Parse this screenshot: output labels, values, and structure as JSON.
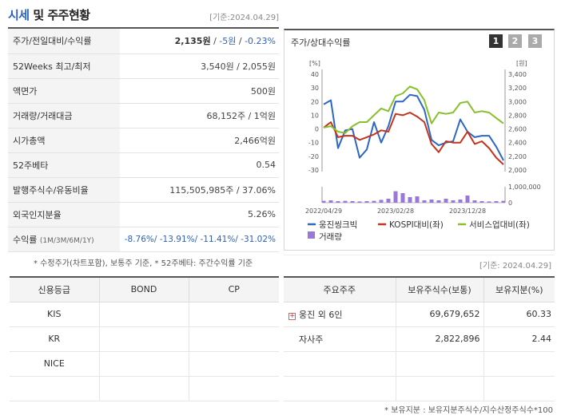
{
  "header": {
    "title_a": "시세",
    "title_b": " 및 주주현황",
    "date": "[기준:2024.04.29]"
  },
  "stock_rows": [
    {
      "label": "주가/전일대비/수익률",
      "v1": "2,135원",
      "sep1": " / ",
      "v2": "-5원",
      "sep2": " / ",
      "v3": "-0.23%"
    },
    {
      "label": "52Weeks 최고/최저",
      "value": "3,540원 / 2,055원"
    },
    {
      "label": "액면가",
      "value": "500원"
    },
    {
      "label": "거래량/거래대금",
      "value": "68,152주 / 1억원"
    },
    {
      "label": "시가총액",
      "value": "2,466억원"
    },
    {
      "label": "52주베타",
      "value": "0.54"
    },
    {
      "label": "발행주식수/유동비율",
      "value": "115,505,985주 / 37.06%"
    },
    {
      "label": "외국인지분율",
      "value": "5.26%"
    },
    {
      "label": "수익률",
      "label_sub": "(1M/3M/6M/1Y)",
      "value": "-8.76%/ -13.91%/ -11.41%/ -31.02%"
    }
  ],
  "note1": "* 수정주가(차트포함), 보통주 기준, * 52주베타: 주간수익률 기준",
  "chart_panel": {
    "title": "주가/상대수익률",
    "pages": [
      "1",
      "2",
      "3"
    ],
    "date": "[기준: 2024.04.29]"
  },
  "chart_data": {
    "type": "line",
    "left_unit": "[%]",
    "right_unit": "[원]",
    "left_ticks": [
      "40",
      "30",
      "20",
      "10",
      "0",
      "-10",
      "-20",
      "-30"
    ],
    "left_ylim": [
      -30,
      40
    ],
    "right_ticks": [
      "3,400",
      "3,200",
      "3,000",
      "2,800",
      "2,600",
      "2,400",
      "2,200",
      "2,000"
    ],
    "right_ylim": [
      2000,
      3400
    ],
    "vol_tick_top": "1,000,000",
    "vol_tick_bottom": "0",
    "x_labels": [
      "2022/04/29",
      "2023/02/28",
      "2023/12/28"
    ],
    "x_label_pos": [
      0,
      10,
      20
    ],
    "x_count": 26,
    "series": [
      {
        "name": "웅진씽크빅",
        "color": "#2e66c4",
        "values": [
          18,
          21,
          -14,
          -1,
          0,
          -21,
          -15,
          5,
          -10,
          2,
          20,
          20,
          25,
          24,
          14,
          -8,
          -12,
          -10,
          -9,
          7,
          -2,
          -6,
          -5,
          -5,
          -13,
          -23
        ]
      },
      {
        "name": "KOSPI대비(좌)",
        "color": "#c4331e",
        "values": [
          1,
          5,
          -6,
          -5,
          -5,
          -8,
          -6,
          -4,
          -1,
          -2,
          11,
          10,
          12,
          9,
          5,
          -11,
          -17,
          -9,
          -10,
          -10,
          -2,
          -11,
          -9,
          -14,
          -21,
          -26
        ]
      },
      {
        "name": "서비스업대비(좌)",
        "color": "#88c02a",
        "values": [
          1,
          2,
          -2,
          -3,
          2,
          5,
          5,
          10,
          15,
          13,
          24,
          26,
          31,
          29,
          21,
          4,
          12,
          11,
          12,
          19,
          20,
          12,
          13,
          12,
          8,
          4
        ]
      }
    ],
    "volume": {
      "name": "거래량",
      "color": "#9b77d8",
      "values": [
        0.12,
        0.15,
        0.1,
        0.12,
        0.1,
        0.08,
        0.1,
        0.12,
        0.18,
        0.25,
        0.72,
        0.6,
        0.35,
        0.4,
        0.15,
        0.2,
        0.15,
        0.25,
        0.15,
        0.2,
        0.45,
        0.15,
        0.1,
        0.08,
        0.1,
        0.12
      ]
    }
  },
  "credit": {
    "headers": [
      "신용등급",
      "BOND",
      "CP"
    ],
    "rows": [
      [
        "KIS",
        "",
        ""
      ],
      [
        "KR",
        "",
        ""
      ],
      [
        "NICE",
        "",
        ""
      ],
      [
        "",
        "",
        ""
      ]
    ]
  },
  "holders": {
    "headers": [
      "주요주주",
      "보유주식수(보통)",
      "보유지분(%)"
    ],
    "rows": [
      {
        "name": "웅진 외 6인",
        "plus": "+",
        "shares": "69,679,652",
        "pct": "60.33"
      },
      {
        "name": "자사주",
        "shares": "2,822,896",
        "pct": "2.44"
      },
      {
        "name": "",
        "shares": "",
        "pct": ""
      },
      {
        "name": "",
        "shares": "",
        "pct": ""
      }
    ]
  },
  "note2": "* 보유지분 : 보유지분주식수/지수산정주식수*100"
}
